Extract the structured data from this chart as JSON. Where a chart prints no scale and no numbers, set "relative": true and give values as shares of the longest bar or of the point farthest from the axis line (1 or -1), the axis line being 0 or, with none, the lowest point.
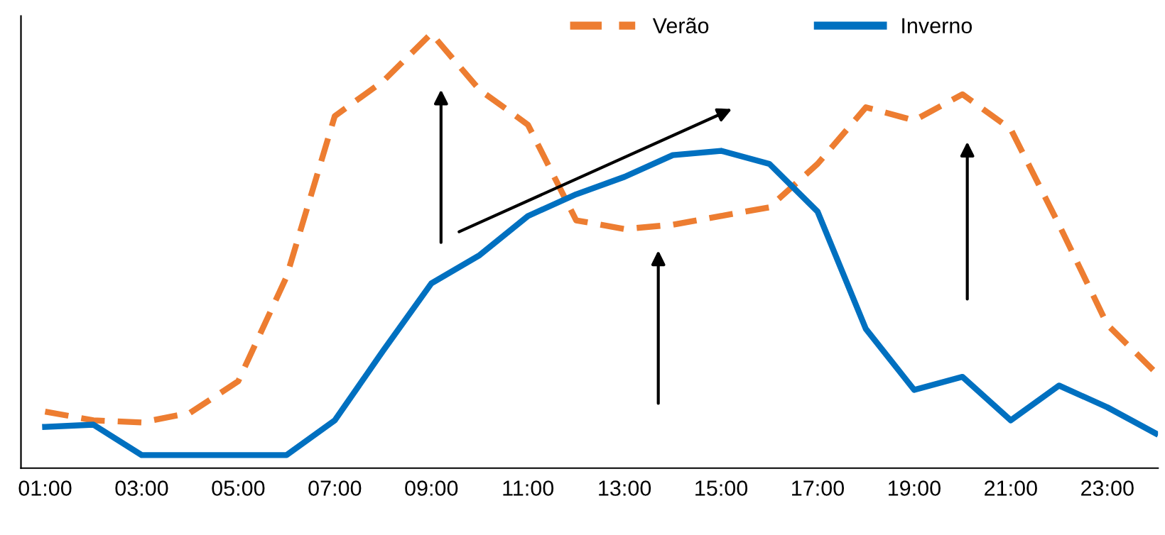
{
  "chart_data": {
    "type": "line",
    "relative": true,
    "legend": "top",
    "marker": "none",
    "grid": false,
    "categories": [
      "01:00",
      null,
      "03:00",
      null,
      "05:00",
      null,
      "07:00",
      null,
      "09:00",
      null,
      "11:00",
      null,
      "13:00",
      null,
      "15:00",
      null,
      "17:00",
      null,
      "19:00",
      null,
      "21:00",
      null,
      "23:00",
      null
    ],
    "series": [
      {
        "name": "Verão",
        "color": "#ed7d31",
        "line_style": "dashed",
        "values": [
          0.13,
          0.11,
          0.105,
          0.127,
          0.2,
          0.44,
          0.81,
          0.89,
          1.0,
          0.87,
          0.79,
          0.57,
          0.55,
          0.56,
          0.58,
          0.6,
          0.7,
          0.83,
          0.8,
          0.86,
          0.78,
          0.56,
          0.33,
          0.22
        ]
      },
      {
        "name": "Inverno",
        "color": "#0070c0",
        "line_style": "solid",
        "values": [
          0.095,
          0.1,
          0.03,
          0.03,
          0.03,
          0.03,
          0.11,
          0.27,
          0.425,
          0.49,
          0.58,
          0.63,
          0.67,
          0.72,
          0.73,
          0.7,
          0.59,
          0.32,
          0.18,
          0.21,
          0.11,
          0.19,
          0.14,
          0.08
        ]
      }
    ]
  }
}
